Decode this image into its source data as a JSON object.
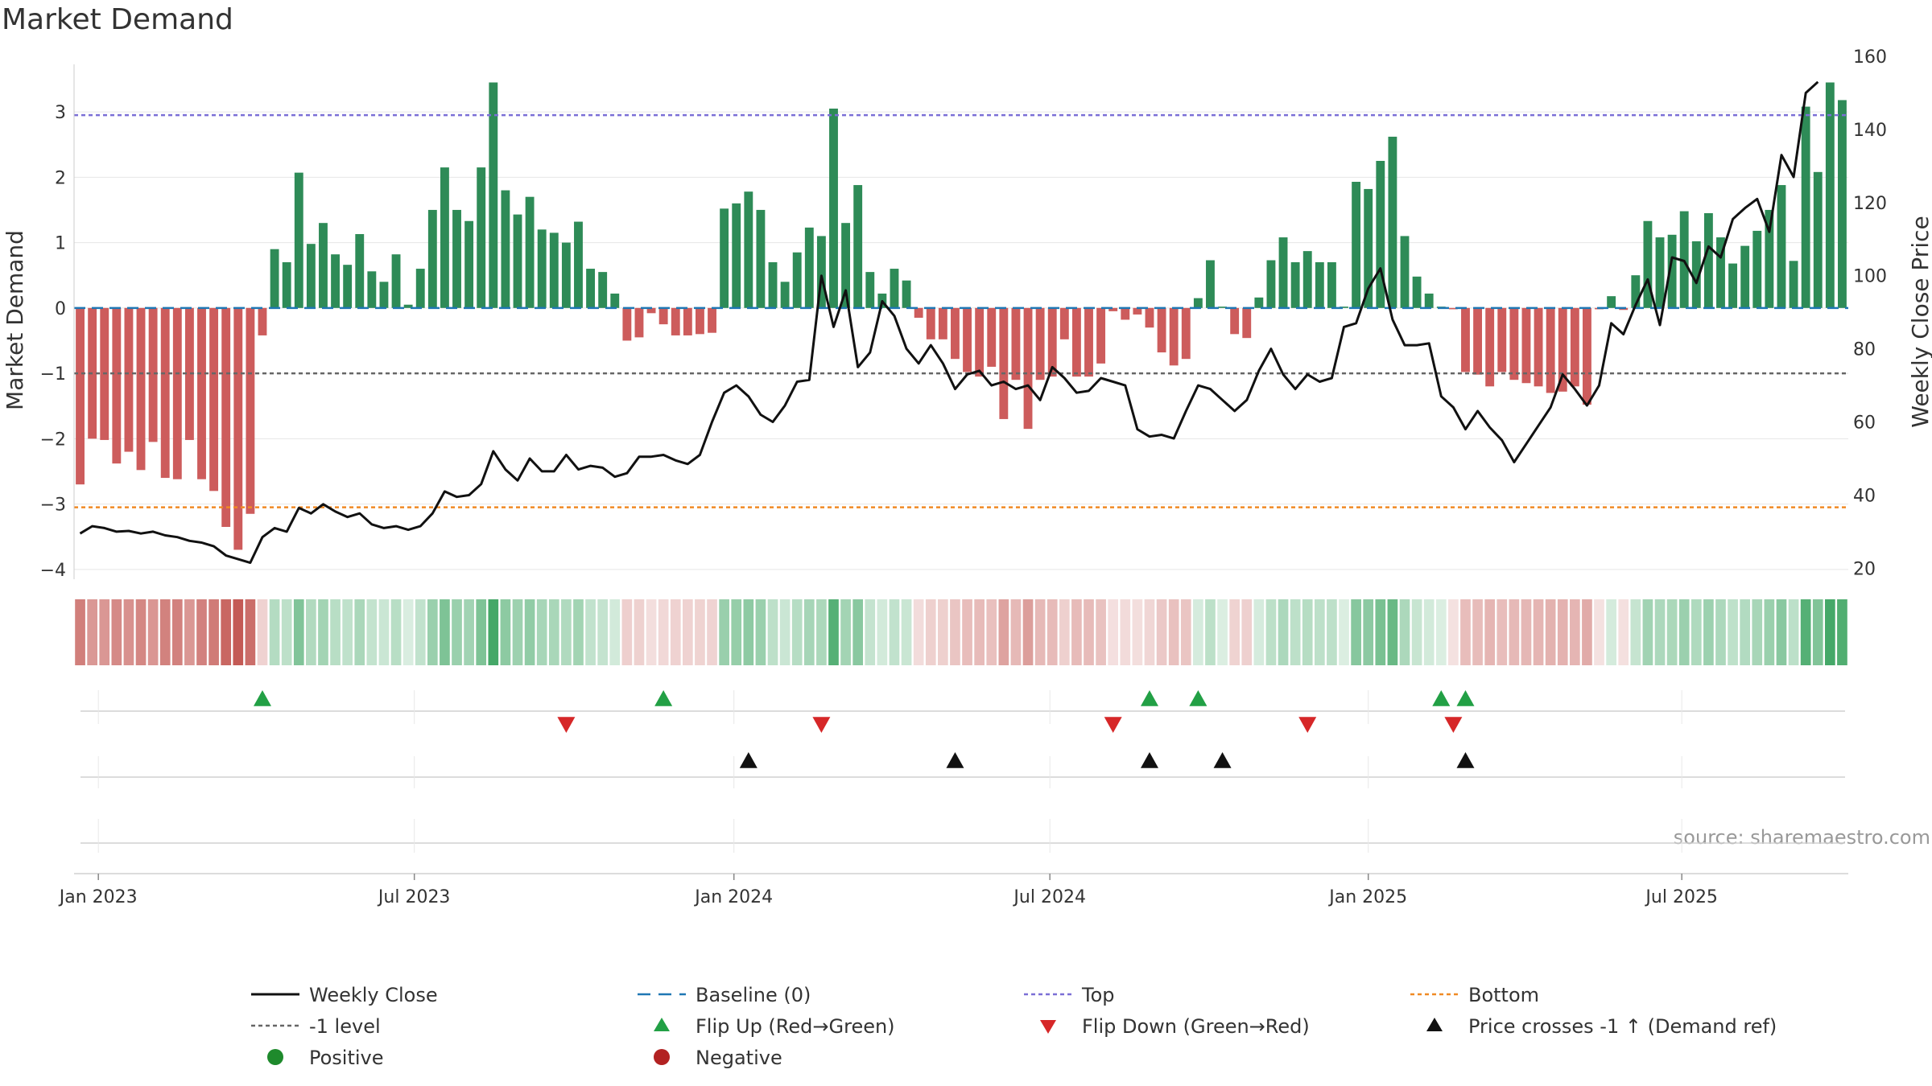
{
  "colors": {
    "positive": "#2e8b57",
    "negative": "#cd5c5c",
    "close": "#111111",
    "baseline": "#1f77b4",
    "top": "#7b6fd6",
    "minus1": "#666666",
    "bottom": "#f08a24",
    "flip_up": "#22a045",
    "flip_down": "#d62728",
    "cross": "#111111",
    "grid": "#e6e6e6"
  },
  "chart_data": {
    "type": "bar",
    "title": "Market Demand",
    "ylabel": "Market Demand",
    "y2label": "Weekly Close Price",
    "source": "source: sharemaestro.com",
    "ylim": [
      -4.15,
      3.85
    ],
    "y2lim": [
      17,
      160
    ],
    "yticks": [
      -4,
      -3,
      -2,
      -1,
      0,
      1,
      2,
      3
    ],
    "ytick_labels": [
      "−4",
      "−3",
      "−2",
      "−1",
      "0",
      "1",
      "2",
      "3"
    ],
    "y2ticks": [
      20,
      40,
      60,
      80,
      100,
      120,
      140,
      160
    ],
    "start_date": "2023-01-06",
    "xticks": [
      {
        "label": "Jan 2023",
        "week": 1.5
      },
      {
        "label": "Jul 2023",
        "week": 27.5
      },
      {
        "label": "Jan 2024",
        "week": 53.8
      },
      {
        "label": "Jul 2024",
        "week": 79.8
      },
      {
        "label": "Jan 2025",
        "week": 106
      },
      {
        "label": "Jul 2025",
        "week": 131.8
      }
    ],
    "reference_lines": {
      "top": 2.95,
      "minus1": -1.0,
      "bottom": -3.05,
      "baseline": 0
    },
    "demand": [
      -2.7,
      -2.0,
      -2.02,
      -2.38,
      -2.2,
      -2.48,
      -2.05,
      -2.6,
      -2.62,
      -2.02,
      -2.62,
      -2.8,
      -3.35,
      -3.7,
      -3.15,
      -0.42,
      0.9,
      0.7,
      2.07,
      0.98,
      1.3,
      0.82,
      0.66,
      1.13,
      0.56,
      0.4,
      0.82,
      0.05,
      0.6,
      1.5,
      2.15,
      1.5,
      1.33,
      2.15,
      3.45,
      1.8,
      1.43,
      1.7,
      1.2,
      1.15,
      1.0,
      1.32,
      0.6,
      0.55,
      0.22,
      -0.5,
      -0.45,
      -0.08,
      -0.25,
      -0.42,
      -0.42,
      -0.4,
      -0.38,
      1.52,
      1.6,
      1.78,
      1.5,
      0.7,
      0.4,
      0.85,
      1.23,
      1.1,
      3.05,
      1.3,
      1.88,
      0.55,
      0.22,
      0.6,
      0.42,
      -0.15,
      -0.48,
      -0.48,
      -0.78,
      -0.98,
      -1.05,
      -0.9,
      -1.7,
      -1.1,
      -1.85,
      -1.1,
      -1.05,
      -0.48,
      -1.05,
      -1.05,
      -0.85,
      -0.05,
      -0.18,
      -0.1,
      -0.3,
      -0.68,
      -0.88,
      -0.78,
      0.15,
      0.73,
      0.02,
      -0.4,
      -0.46,
      0.16,
      0.73,
      1.08,
      0.7,
      0.87,
      0.7,
      0.7,
      0.02,
      1.93,
      1.82,
      2.25,
      2.62,
      1.1,
      0.48,
      0.22,
      0.02,
      -0.02,
      -0.98,
      -1.02,
      -1.2,
      -0.98,
      -1.1,
      -1.15,
      -1.2,
      -1.3,
      -1.28,
      -1.2,
      -1.48,
      -0.02,
      0.18,
      -0.03,
      0.5,
      1.33,
      1.08,
      1.12,
      1.48,
      1.02,
      1.45,
      1.08,
      0.68,
      0.95,
      1.18,
      1.5,
      1.88,
      0.72,
      3.08,
      2.08,
      3.45,
      3.18
    ],
    "close": [
      29.5,
      31.5,
      31.0,
      30.0,
      30.2,
      29.5,
      30.0,
      29.0,
      28.5,
      27.5,
      27.0,
      26.0,
      23.5,
      22.5,
      21.5,
      28.5,
      31.0,
      30.0,
      36.5,
      35.0,
      37.5,
      35.5,
      34.0,
      35.0,
      32.0,
      31.0,
      31.5,
      30.5,
      31.5,
      35.0,
      41.0,
      39.5,
      40.0,
      43.0,
      52.0,
      47.0,
      44.0,
      50.0,
      46.5,
      46.5,
      51.0,
      47.0,
      48.0,
      47.5,
      45.0,
      46.0,
      50.5,
      50.5,
      51.0,
      49.5,
      48.5,
      51.0,
      60.0,
      68.0,
      70.0,
      67.0,
      62.0,
      60.0,
      64.5,
      71.0,
      71.5,
      100.0,
      86.0,
      96.0,
      75.0,
      79.0,
      93.0,
      89.0,
      80.0,
      76.0,
      81.0,
      76.0,
      69.0,
      73.0,
      74.0,
      70.0,
      71.0,
      69.0,
      70.0,
      66.0,
      75.0,
      72.0,
      68.0,
      68.5,
      72.0,
      71.0,
      70.0,
      58.0,
      56.0,
      56.5,
      55.5,
      63.0,
      70.0,
      69.0,
      66.0,
      63.0,
      66.0,
      74.0,
      80.0,
      73.0,
      69.0,
      73.0,
      71.0,
      72.0,
      86.0,
      87.0,
      96.5,
      102.0,
      88.0,
      81.0,
      81.0,
      81.5,
      67.0,
      64.0,
      58.0,
      63.0,
      58.5,
      55.0,
      49.0,
      54.0,
      59.0,
      64.0,
      73.0,
      69.0,
      64.5,
      70.0,
      87.0,
      84.0,
      92.0,
      99.0,
      86.5,
      105.0,
      104.0,
      98.0,
      108.0,
      105.0,
      115.5,
      118.5,
      121.0,
      112.0,
      133.0,
      127.0,
      150.0,
      153.0
    ],
    "flip_up_weeks": [
      15,
      48,
      88,
      92,
      112,
      114
    ],
    "flip_down_weeks": [
      40,
      61,
      85,
      101,
      113
    ],
    "cross_weeks": [
      55,
      72,
      88,
      94,
      114
    ],
    "legend": [
      {
        "key": "close",
        "label": "Weekly Close"
      },
      {
        "key": "baseline",
        "label": "Baseline (0)"
      },
      {
        "key": "top",
        "label": "Top"
      },
      {
        "key": "bottom",
        "label": "Bottom"
      },
      {
        "key": "minus1",
        "label": "-1 level"
      },
      {
        "key": "flip_up",
        "label": "Flip Up (Red→Green)"
      },
      {
        "key": "flip_down",
        "label": "Flip Down (Green→Red)"
      },
      {
        "key": "cross",
        "label": "Price crosses -1 ↑ (Demand ref)"
      },
      {
        "key": "positive",
        "label": "Positive"
      },
      {
        "key": "negative",
        "label": "Negative"
      }
    ]
  }
}
